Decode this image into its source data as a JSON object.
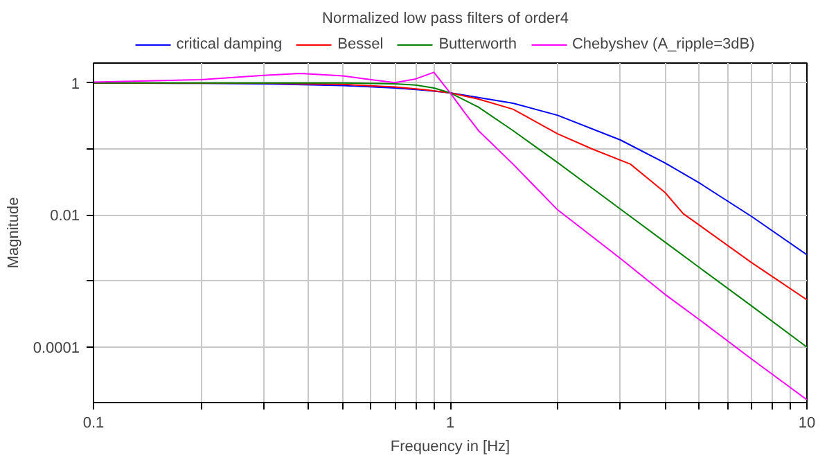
{
  "chart_data": {
    "type": "line",
    "title": "Normalized low pass filters of order4",
    "xlabel": "Frequency in [Hz]",
    "ylabel": "Magnitude",
    "log": "xy",
    "grid": true,
    "legend": "top",
    "marker": "none",
    "line_style": "solid",
    "xlim": [
      0.1,
      10
    ],
    "ylim": [
      1.45e-05,
      2
    ],
    "xticks": [
      0.1,
      {
        "value": 0.2,
        "label": null
      },
      {
        "value": 0.3,
        "label": null
      },
      {
        "value": 0.4,
        "label": null
      },
      {
        "value": 0.5,
        "label": null
      },
      {
        "value": 0.6,
        "label": null
      },
      {
        "value": 0.7,
        "label": null
      },
      {
        "value": 0.8,
        "label": null
      },
      {
        "value": 0.9,
        "label": null
      },
      1,
      {
        "value": 2,
        "label": null
      },
      {
        "value": 3,
        "label": null
      },
      {
        "value": 4,
        "label": null
      },
      {
        "value": 5,
        "label": null
      },
      {
        "value": 6,
        "label": null
      },
      {
        "value": 7,
        "label": null
      },
      {
        "value": 8,
        "label": null
      },
      {
        "value": 9,
        "label": null
      },
      10
    ],
    "yticks": [
      0.0001,
      {
        "value": 0.001,
        "label": null
      },
      0.01,
      {
        "value": 0.1,
        "label": null
      },
      1
    ],
    "series": [
      {
        "name": "critical damping",
        "color": "#0000ff",
        "x": [
          0.1,
          0.2,
          0.3,
          0.5,
          0.7,
          0.85,
          1,
          1.5,
          2,
          3,
          4,
          5,
          7,
          10
        ],
        "values": [
          0.996,
          0.985,
          0.967,
          0.912,
          0.838,
          0.774,
          0.707,
          0.492,
          0.324,
          0.137,
          0.0617,
          0.0305,
          0.0095,
          0.0025
        ]
      },
      {
        "name": "Bessel",
        "color": "#ff0000",
        "x": [
          0.1,
          0.3,
          0.5,
          0.7,
          0.85,
          1,
          1.2,
          1.5,
          2,
          2.5,
          3.2,
          4,
          4.5,
          5,
          7,
          10
        ],
        "values": [
          0.999,
          0.99,
          0.95,
          0.87,
          0.79,
          0.707,
          0.57,
          0.4,
          0.17,
          0.1,
          0.059,
          0.022,
          0.0105,
          0.007,
          0.0019,
          0.00052
        ]
      },
      {
        "name": "Butterworth",
        "color": "#008000",
        "x": [
          0.1,
          0.3,
          0.5,
          0.7,
          0.8,
          0.9,
          1,
          1.2,
          1.5,
          2,
          3,
          4,
          5,
          7,
          10
        ],
        "values": [
          1,
          1,
          0.998,
          0.97,
          0.93,
          0.84,
          0.707,
          0.43,
          0.19,
          0.0624,
          0.0123,
          0.0039,
          0.0016,
          0.00042,
          0.0001
        ]
      },
      {
        "name": "Chebyshev (A_ripple=3dB)",
        "color": "#ff00ff",
        "x": [
          0.1,
          0.2,
          0.3,
          0.38,
          0.5,
          0.6,
          0.7,
          0.8,
          0.9,
          1,
          1.1,
          1.2,
          1.5,
          2,
          3,
          4,
          5,
          7,
          10
        ],
        "values": [
          1.03,
          1.12,
          1.3,
          1.39,
          1.28,
          1.12,
          1.01,
          1.15,
          1.45,
          0.707,
          0.35,
          0.19,
          0.059,
          0.012,
          0.0022,
          0.00063,
          0.00026,
          6.6e-05,
          1.6e-05
        ]
      }
    ]
  }
}
